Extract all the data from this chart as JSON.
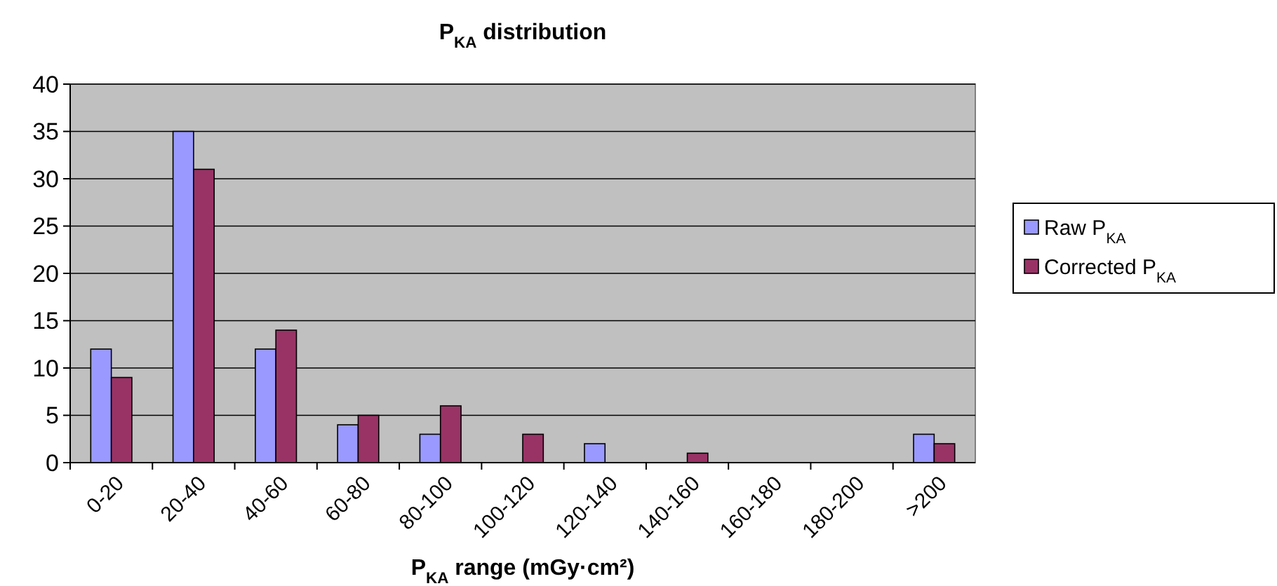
{
  "chart_data": {
    "type": "bar",
    "title": "P$_{KA}$ distribution",
    "xlabel": "P$_{KA}$ range (mGy·cm²)",
    "categories": [
      "0-20",
      "20-40",
      "40-60",
      "60-80",
      "80-100",
      "100-120",
      "120-140",
      "140-160",
      "160-180",
      "180-200",
      ">200"
    ],
    "series": [
      {
        "name": "Raw P$_{KA}$",
        "color": "#9999ff",
        "values": [
          12,
          35,
          12,
          4,
          3,
          0,
          2,
          0,
          0,
          0,
          3
        ]
      },
      {
        "name": "Corrected P$_{KA}$",
        "color": "#993366",
        "values": [
          9,
          31,
          14,
          5,
          6,
          3,
          0,
          1,
          0,
          0,
          2
        ]
      }
    ],
    "ylim": [
      0,
      40
    ],
    "yticks": [
      0,
      5,
      10,
      15,
      20,
      25,
      30,
      35,
      40
    ],
    "grid": "y",
    "legend": "right"
  }
}
